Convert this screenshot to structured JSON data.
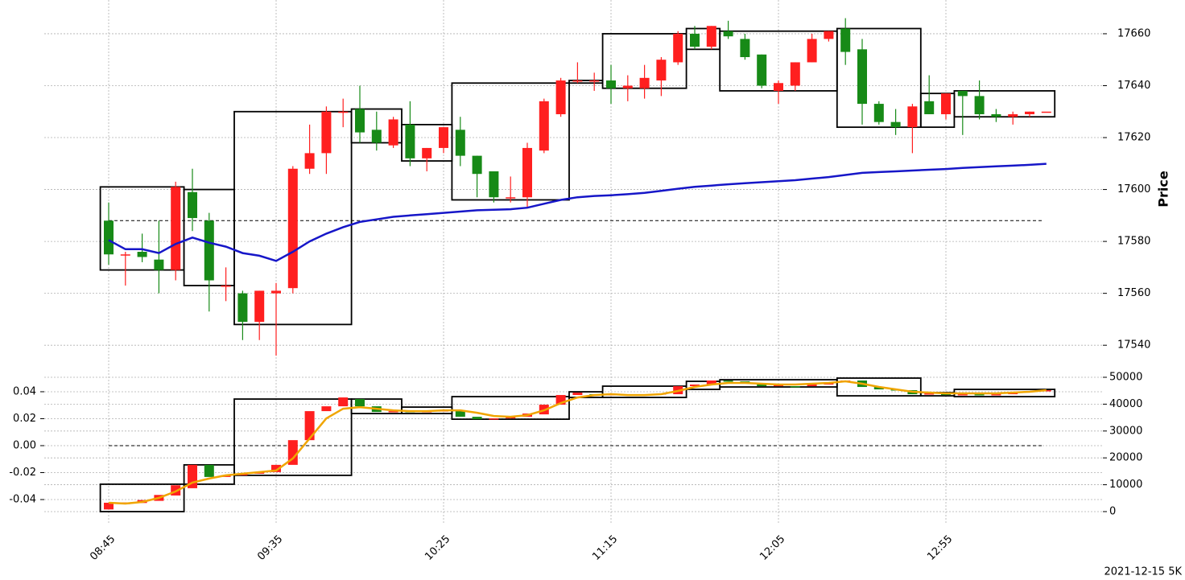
{
  "chart_data": [
    {
      "type": "candlestick",
      "ylabel": "Price",
      "grid": true,
      "up_color": "#ff1f1f",
      "down_color": "#178a17",
      "categories": [
        "08:45",
        null,
        null,
        null,
        null,
        null,
        null,
        null,
        null,
        null,
        "09:35",
        null,
        null,
        null,
        null,
        null,
        null,
        null,
        null,
        null,
        "10:25",
        null,
        null,
        null,
        null,
        null,
        null,
        null,
        null,
        null,
        "11:15",
        null,
        null,
        null,
        null,
        null,
        null,
        null,
        null,
        null,
        "12:05",
        null,
        null,
        null,
        null,
        null,
        null,
        null,
        null,
        null,
        "12:55",
        null,
        null,
        null,
        null,
        null,
        null
      ],
      "open": [
        17588,
        17575,
        17576,
        17573,
        17569,
        17599,
        17588,
        17563,
        17560,
        17549,
        17560,
        17562,
        17608,
        17614,
        17630,
        17631,
        17623,
        17617,
        17625,
        17612,
        17616,
        17623,
        17613,
        17607,
        17597,
        17597,
        17615,
        17629,
        17642,
        17642,
        17642,
        17639,
        17639,
        17642,
        17649,
        17660,
        17655,
        17661,
        17658,
        17652,
        17638,
        17640,
        17649,
        17658,
        17662,
        17654,
        17633,
        17626,
        17624,
        17634,
        17629,
        17638,
        17636,
        17629,
        17628,
        17629,
        17630
      ],
      "high": [
        17595,
        17576,
        17583,
        17588,
        17603,
        17608,
        17591,
        17570,
        17561,
        17561,
        17564,
        17609,
        17625,
        17632,
        17635,
        17640,
        17630,
        17628,
        17634,
        17616,
        17624,
        17628,
        17613,
        17607,
        17605,
        17618,
        17635,
        17643,
        17649,
        17645,
        17648,
        17644,
        17648,
        17651,
        17661,
        17663,
        17663,
        17665,
        17660,
        17652,
        17642,
        17649,
        17660,
        17661,
        17666,
        17658,
        17634,
        17631,
        17633,
        17644,
        17637,
        17638,
        17642,
        17631,
        17630,
        17630,
        17630
      ],
      "low": [
        17571,
        17563,
        17572,
        17560,
        17565,
        17584,
        17553,
        17557,
        17542,
        17542,
        17536,
        17560,
        17606,
        17606,
        17624,
        17618,
        17615,
        17616,
        17609,
        17607,
        17614,
        17609,
        17597,
        17595,
        17595,
        17593,
        17614,
        17628,
        17641,
        17638,
        17633,
        17634,
        17635,
        17636,
        17648,
        17654,
        17654,
        17658,
        17650,
        17639,
        17633,
        17638,
        17649,
        17657,
        17648,
        17625,
        17625,
        17621,
        17614,
        17629,
        17627,
        17621,
        17627,
        17626,
        17625,
        17628,
        17630
      ],
      "close": [
        17575,
        17575,
        17574,
        17569,
        17601,
        17589,
        17565,
        17563,
        17549,
        17561,
        17561,
        17608,
        17614,
        17630,
        17630,
        17622,
        17618,
        17627,
        17612,
        17616,
        17624,
        17613,
        17606,
        17597,
        17597,
        17616,
        17634,
        17642,
        17642,
        17642,
        17639,
        17640,
        17643,
        17650,
        17660,
        17655,
        17663,
        17659,
        17651,
        17640,
        17641,
        17649,
        17658,
        17661,
        17653,
        17633,
        17626,
        17624,
        17632,
        17629,
        17637,
        17636,
        17629,
        17628,
        17629,
        17630,
        17630
      ],
      "ma": {
        "color": "#1616c8",
        "values": [
          17580.5,
          17577,
          17577,
          17575.5,
          17579,
          17581.5,
          17579.5,
          17578,
          17575.5,
          17574.5,
          17572.5,
          17576,
          17580,
          17583,
          17585.5,
          17587.5,
          17588.5,
          17589.5,
          17590,
          17590.5,
          17591,
          17591.5,
          17592,
          17592.2,
          17592.4,
          17593,
          17594.5,
          17596,
          17597,
          17597.5,
          17597.8,
          17598.2,
          17598.7,
          17599.5,
          17600.3,
          17601,
          17601.5,
          17602,
          17602.4,
          17602.8,
          17603.2,
          17603.6,
          17604.2,
          17604.8,
          17605.6,
          17606.4,
          17606.7,
          17607,
          17607.3,
          17607.6,
          17607.9,
          17608.3,
          17608.6,
          17608.9,
          17609.2,
          17609.5,
          17609.9
        ]
      },
      "hline": 17588,
      "boxes": [
        {
          "start": 0,
          "end": 4,
          "low": 17569,
          "high": 17601
        },
        {
          "start": 5,
          "end": 7,
          "low": 17563,
          "high": 17600
        },
        {
          "start": 8,
          "end": 14,
          "low": 17548,
          "high": 17630
        },
        {
          "start": 15,
          "end": 17,
          "low": 17618,
          "high": 17631
        },
        {
          "start": 18,
          "end": 20,
          "low": 17611,
          "high": 17625
        },
        {
          "start": 21,
          "end": 27,
          "low": 17596,
          "high": 17641
        },
        {
          "start": 28,
          "end": 29,
          "low": 17641,
          "high": 17642
        },
        {
          "start": 30,
          "end": 34,
          "low": 17639,
          "high": 17660
        },
        {
          "start": 35,
          "end": 36,
          "low": 17654,
          "high": 17662
        },
        {
          "start": 37,
          "end": 43,
          "low": 17638,
          "high": 17661
        },
        {
          "start": 44,
          "end": 48,
          "low": 17624,
          "high": 17662
        },
        {
          "start": 49,
          "end": 50,
          "low": 17624,
          "high": 17637
        },
        {
          "start": 51,
          "end": 56,
          "low": 17628,
          "high": 17638
        }
      ],
      "ylim": [
        17532,
        17673
      ],
      "yticks": [
        17540,
        17560,
        17580,
        17600,
        17620,
        17640,
        17660
      ]
    },
    {
      "type": "candlestick",
      "open": [
        800,
        2800,
        3200,
        4000,
        6000,
        8700,
        17400,
        12900,
        13500,
        14100,
        14700,
        17400,
        26600,
        37400,
        39200,
        41900,
        39200,
        37100,
        37400,
        37100,
        37400,
        37700,
        35300,
        34400,
        34700,
        35300,
        36200,
        39800,
        43400,
        43700,
        43400,
        43700,
        43400,
        43700,
        43700,
        46700,
        47300,
        48800,
        48500,
        47600,
        46700,
        46700,
        46700,
        47300,
        48200,
        48800,
        46400,
        45500,
        45200,
        43700,
        44000,
        43400,
        43700,
        43400,
        43700,
        44600,
        44900
      ],
      "close": [
        3300,
        3400,
        4300,
        6200,
        9800,
        17400,
        12900,
        13500,
        14100,
        14700,
        17400,
        26600,
        37400,
        39200,
        42500,
        39200,
        37100,
        37400,
        37100,
        37400,
        37700,
        35300,
        34400,
        34700,
        35300,
        36500,
        39800,
        43400,
        44300,
        43100,
        43700,
        43400,
        43700,
        44000,
        46700,
        47300,
        48800,
        48500,
        48200,
        46700,
        47300,
        46400,
        47300,
        48200,
        48800,
        46400,
        45500,
        45200,
        43700,
        44000,
        43400,
        43700,
        43400,
        43700,
        44600,
        44900,
        45200
      ],
      "axis": "y2",
      "line": {
        "color": "#f0a500",
        "values": [
          3300,
          3000,
          3600,
          5100,
          7500,
          10800,
          12300,
          13500,
          14100,
          14700,
          15300,
          19800,
          27200,
          34700,
          38300,
          38900,
          38300,
          37700,
          37400,
          37400,
          37700,
          37700,
          36800,
          35600,
          35300,
          35900,
          37700,
          40400,
          42500,
          43400,
          43700,
          43400,
          43400,
          43700,
          44900,
          46400,
          47300,
          47900,
          47900,
          47600,
          47300,
          47300,
          47600,
          47900,
          48500,
          47600,
          46400,
          45500,
          44600,
          44300,
          44000,
          44000,
          44000,
          44000,
          44300,
          44600,
          45200
        ]
      },
      "hline": 0,
      "boxes": [
        {
          "start": 0,
          "end": 4,
          "low": 0,
          "high": 10200
        },
        {
          "start": 5,
          "end": 7,
          "low": 10200,
          "high": 17400
        },
        {
          "start": 8,
          "end": 14,
          "low": 13500,
          "high": 41900
        },
        {
          "start": 15,
          "end": 17,
          "low": 36500,
          "high": 41900
        },
        {
          "start": 18,
          "end": 20,
          "low": 36500,
          "high": 38900
        },
        {
          "start": 21,
          "end": 27,
          "low": 34400,
          "high": 42800
        },
        {
          "start": 28,
          "end": 29,
          "low": 42500,
          "high": 44600
        },
        {
          "start": 30,
          "end": 34,
          "low": 42500,
          "high": 46700
        },
        {
          "start": 35,
          "end": 36,
          "low": 45500,
          "high": 48500
        },
        {
          "start": 37,
          "end": 43,
          "low": 46400,
          "high": 49100
        },
        {
          "start": 44,
          "end": 48,
          "low": 43100,
          "high": 49700
        },
        {
          "start": 49,
          "end": 50,
          "low": 43100,
          "high": 44300
        },
        {
          "start": 51,
          "end": 56,
          "low": 42800,
          "high": 45500
        }
      ],
      "ylim": [
        -0.0585,
        0.0549
      ],
      "yticks": [
        -0.04,
        -0.02,
        {
          "value": 0,
          "label": "0.00"
        },
        0.02,
        0.04
      ],
      "y2lim": [
        -4800,
        52100
      ],
      "y2ticks": [
        0,
        10000,
        20000,
        30000,
        40000,
        50000
      ]
    }
  ],
  "footnote": "2021-12-15 5K"
}
